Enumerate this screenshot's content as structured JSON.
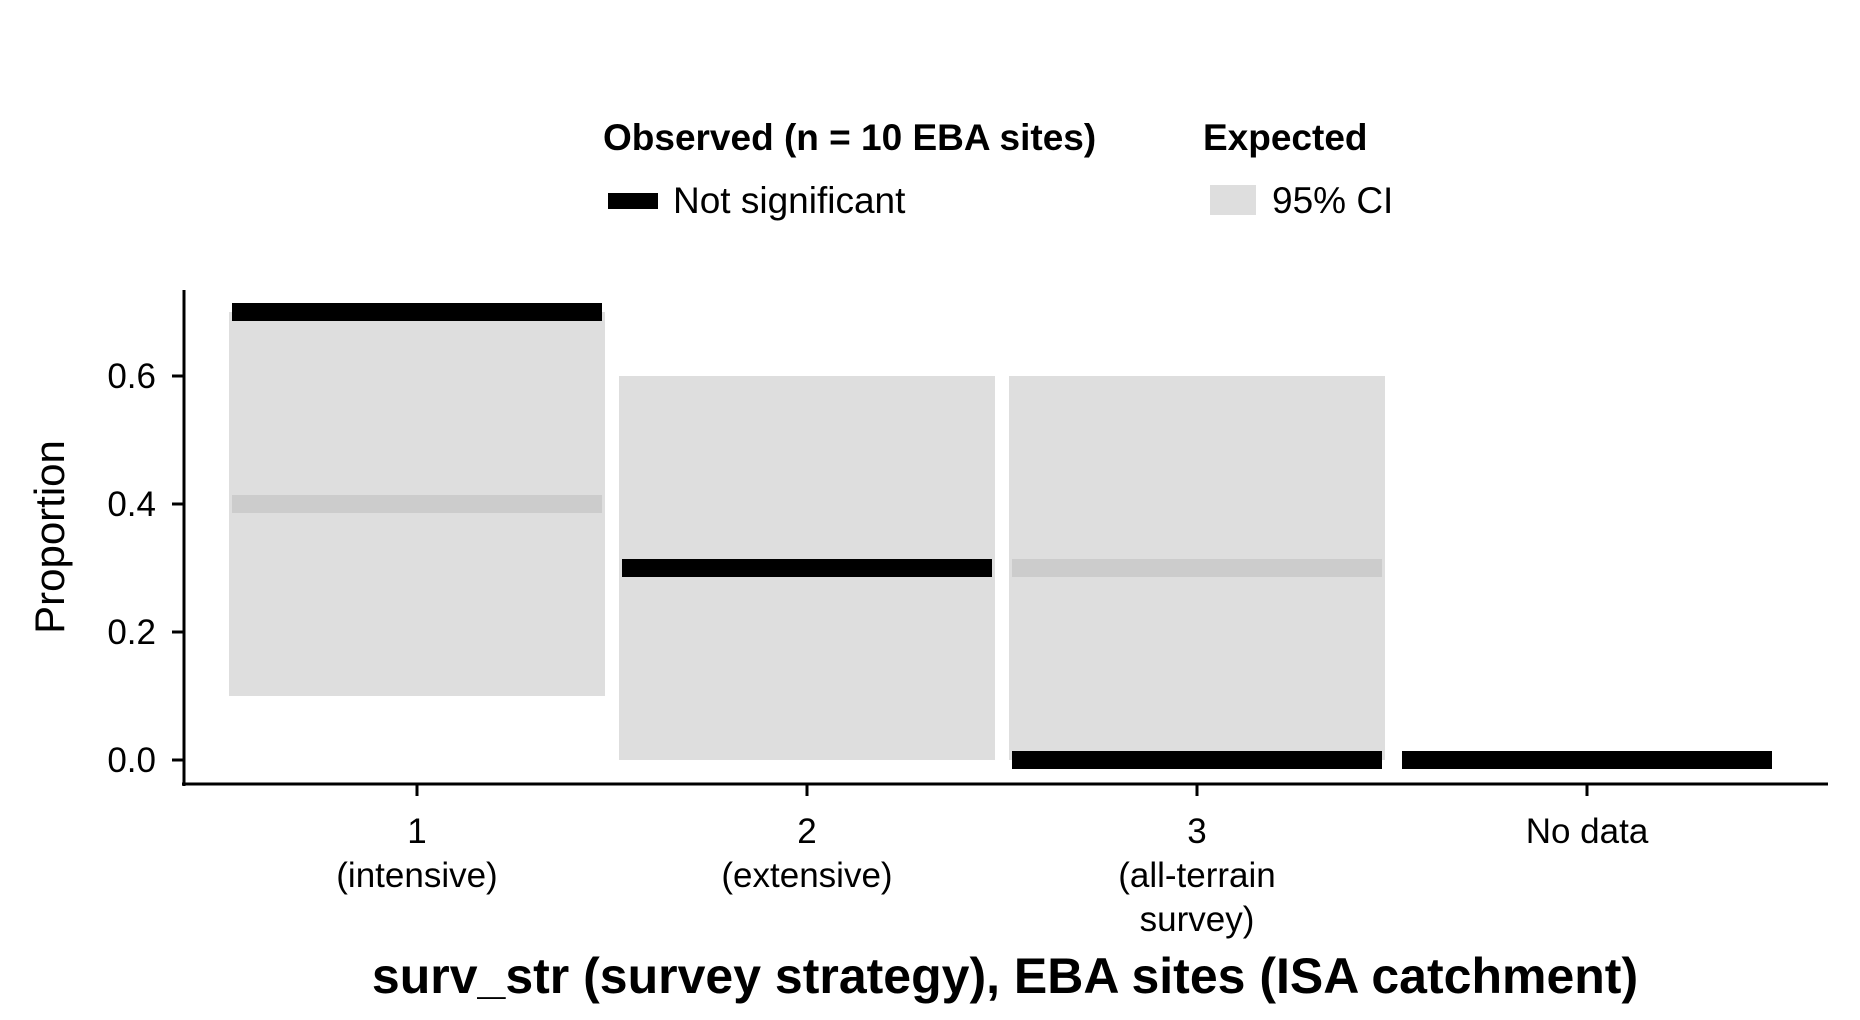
{
  "chart_data": {
    "type": "bar",
    "xlabel": "surv_str (survey strategy), EBA sites (ISA catchment)",
    "ylabel": "Proportion",
    "ylim": [
      0,
      0.72
    ],
    "yticks": [
      "0.0",
      "0.2",
      "0.4",
      "0.6"
    ],
    "grid": false,
    "legend_placement": "top",
    "categories": [
      {
        "label_lines": [
          "1",
          "(intensive)"
        ]
      },
      {
        "label_lines": [
          "2",
          "(extensive)"
        ]
      },
      {
        "label_lines": [
          "3",
          "(all-terrain",
          "survey)"
        ]
      },
      {
        "label_lines": [
          "No data"
        ]
      }
    ],
    "observed": {
      "title": "Observed (n = 10 EBA sites)",
      "entry": "Not significant",
      "values": [
        0.7,
        0.3,
        0.0,
        0.0
      ]
    },
    "expected": {
      "title": "Expected",
      "entry": "95% CI",
      "mean": [
        0.4,
        null,
        0.3,
        null
      ],
      "ci_low": [
        0.1,
        0.0,
        0.0,
        null
      ],
      "ci_high": [
        0.7,
        0.6,
        0.6,
        null
      ]
    },
    "colors": {
      "observed": "#000000",
      "ci_band": "#dedede",
      "expected_mean": "#cccccc"
    }
  }
}
